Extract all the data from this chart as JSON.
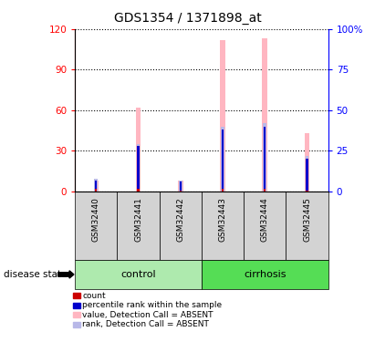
{
  "title": "GDS1354 / 1371898_at",
  "samples": [
    "GSM32440",
    "GSM32441",
    "GSM32442",
    "GSM32443",
    "GSM32444",
    "GSM32445"
  ],
  "group_labels": [
    "control",
    "cirrhosis"
  ],
  "group_colors": [
    "#aeeaae",
    "#55dd55"
  ],
  "value_absent": [
    8,
    62,
    8,
    112,
    113,
    43
  ],
  "rank_absent_pct": [
    8,
    29,
    7,
    40,
    42,
    22
  ],
  "count_red": [
    2,
    2,
    1,
    2,
    2,
    1
  ],
  "rank_blue_pct": [
    7,
    28,
    6,
    38,
    40,
    20
  ],
  "ylim_left": [
    0,
    120
  ],
  "ylim_right": [
    0,
    100
  ],
  "yticks_left": [
    0,
    30,
    60,
    90,
    120
  ],
  "yticks_right": [
    0,
    25,
    50,
    75,
    100
  ],
  "ytick_labels_left": [
    "0",
    "30",
    "60",
    "90",
    "120"
  ],
  "ytick_labels_right": [
    "0",
    "25",
    "50",
    "75",
    "100%"
  ],
  "value_color": "#ffb6c1",
  "rank_color": "#b8b8e8",
  "count_color": "#cc0000",
  "percentile_color": "#0000cc",
  "sample_bg": "#d3d3d3",
  "legend_items": [
    {
      "color": "#cc0000",
      "label": "count"
    },
    {
      "color": "#0000cc",
      "label": "percentile rank within the sample"
    },
    {
      "color": "#ffb6c1",
      "label": "value, Detection Call = ABSENT"
    },
    {
      "color": "#b8b8e8",
      "label": "rank, Detection Call = ABSENT"
    }
  ]
}
